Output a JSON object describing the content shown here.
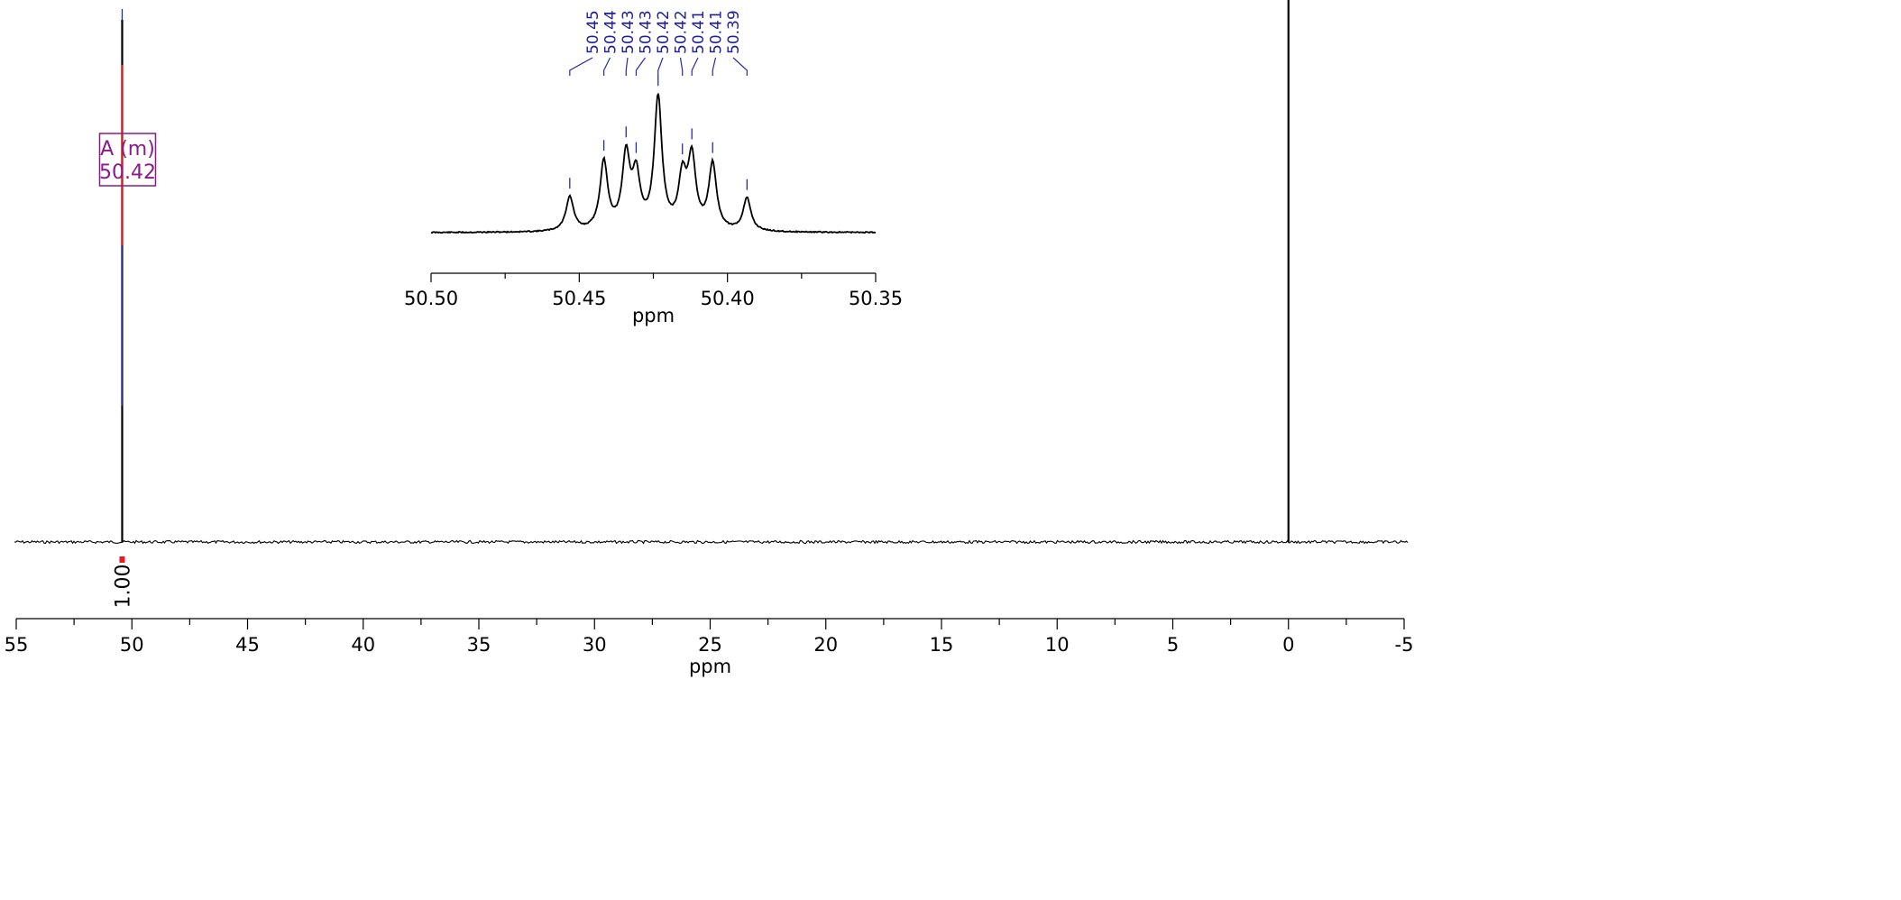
{
  "chart_data": [
    {
      "type": "line",
      "name": "main-spectrum",
      "xlabel": "ppm",
      "xlim": [
        55,
        -5
      ],
      "x_reversed": true,
      "xticks": [
        55,
        50,
        45,
        40,
        35,
        30,
        25,
        20,
        15,
        10,
        5,
        0,
        -5
      ],
      "xtick_labels": [
        "55",
        "50",
        "45",
        "40",
        "35",
        "30",
        "25",
        "20",
        "15",
        "10",
        "5",
        "0",
        "-5"
      ],
      "grid": false,
      "peaks": [
        {
          "ppm": 50.42,
          "relative_height": 1.0
        },
        {
          "ppm": 0.0,
          "relative_height": 1.05
        }
      ],
      "multiplet": {
        "letter": "A",
        "type": "m",
        "label": "A (m)",
        "shift": "50.42"
      },
      "integrals": [
        {
          "ppm": 50.42,
          "value": "1.00"
        }
      ]
    },
    {
      "type": "line",
      "name": "inset-expansion",
      "xlabel": "ppm",
      "xlim": [
        50.5,
        50.35
      ],
      "x_reversed": true,
      "xticks": [
        50.5,
        50.45,
        50.4,
        50.35
      ],
      "xtick_labels": [
        "50.50",
        "50.45",
        "50.40",
        "50.35"
      ],
      "peaks": [
        {
          "ppm": 50.4532,
          "height": 0.26
        },
        {
          "ppm": 50.4417,
          "height": 0.52
        },
        {
          "ppm": 50.4342,
          "height": 0.55
        },
        {
          "ppm": 50.4308,
          "height": 0.39
        },
        {
          "ppm": 50.4234,
          "height": 1.0
        },
        {
          "ppm": 50.4152,
          "height": 0.38
        },
        {
          "ppm": 50.412,
          "height": 0.53
        },
        {
          "ppm": 50.405,
          "height": 0.5
        },
        {
          "ppm": 50.3934,
          "height": 0.25
        }
      ],
      "peak_labels": [
        "50.45",
        "50.44",
        "50.43",
        "50.43",
        "50.42",
        "50.42",
        "50.41",
        "50.41",
        "50.39"
      ]
    }
  ]
}
